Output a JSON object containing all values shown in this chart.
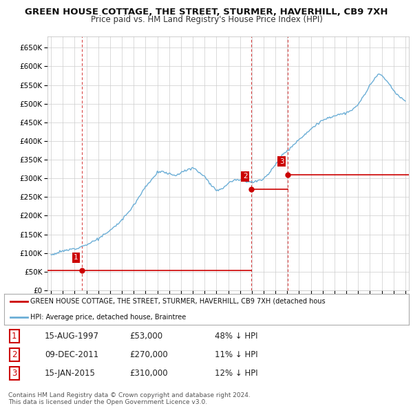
{
  "title": "GREEN HOUSE COTTAGE, THE STREET, STURMER, HAVERHILL, CB9 7XH",
  "subtitle": "Price paid vs. HM Land Registry's House Price Index (HPI)",
  "title_fontsize": 9.5,
  "subtitle_fontsize": 8.5,
  "ylim": [
    0,
    680000
  ],
  "yticks": [
    0,
    50000,
    100000,
    150000,
    200000,
    250000,
    300000,
    350000,
    400000,
    450000,
    500000,
    550000,
    600000,
    650000
  ],
  "ytick_labels": [
    "£0",
    "£50K",
    "£100K",
    "£150K",
    "£200K",
    "£250K",
    "£300K",
    "£350K",
    "£400K",
    "£450K",
    "£500K",
    "£550K",
    "£600K",
    "£650K"
  ],
  "xlim_start": 1994.7,
  "xlim_end": 2025.3,
  "sale_dates": [
    1997.618,
    2011.94,
    2015.04
  ],
  "sale_prices": [
    53000,
    270000,
    310000
  ],
  "sale_labels": [
    "1",
    "2",
    "3"
  ],
  "hpi_color": "#6baed6",
  "sale_color": "#cc0000",
  "legend_sale_label": "GREEN HOUSE COTTAGE, THE STREET, STURMER, HAVERHILL, CB9 7XH (detached hous",
  "legend_hpi_label": "HPI: Average price, detached house, Braintree",
  "table_rows": [
    [
      "1",
      "15-AUG-1997",
      "£53,000",
      "48% ↓ HPI"
    ],
    [
      "2",
      "09-DEC-2011",
      "£270,000",
      "11% ↓ HPI"
    ],
    [
      "3",
      "15-JAN-2015",
      "£310,000",
      "12% ↓ HPI"
    ]
  ],
  "footnote": "Contains HM Land Registry data © Crown copyright and database right 2024.\nThis data is licensed under the Open Government Licence v3.0.",
  "background_color": "#ffffff",
  "grid_color": "#cccccc",
  "hpi_data_years": [
    1995.0,
    1995.083,
    1995.167,
    1995.25,
    1995.333,
    1995.417,
    1995.5,
    1995.583,
    1995.667,
    1995.75,
    1995.833,
    1995.917,
    1996.0,
    1996.083,
    1996.167,
    1996.25,
    1996.333,
    1996.417,
    1996.5,
    1996.583,
    1996.667,
    1996.75,
    1996.833,
    1996.917,
    1997.0,
    1997.083,
    1997.167,
    1997.25,
    1997.333,
    1997.417,
    1997.5,
    1997.583,
    1997.667,
    1997.75,
    1997.833,
    1997.917,
    1998.0,
    1998.083,
    1998.167,
    1998.25,
    1998.333,
    1998.417,
    1998.5,
    1998.583,
    1998.667,
    1998.75,
    1998.833,
    1998.917,
    1999.0,
    1999.083,
    1999.167,
    1999.25,
    1999.333,
    1999.417,
    1999.5,
    1999.583,
    1999.667,
    1999.75,
    1999.833,
    1999.917,
    2000.0,
    2000.083,
    2000.167,
    2000.25,
    2000.333,
    2000.417,
    2000.5,
    2000.583,
    2000.667,
    2000.75,
    2000.833,
    2000.917,
    2001.0,
    2001.083,
    2001.167,
    2001.25,
    2001.333,
    2001.417,
    2001.5,
    2001.583,
    2001.667,
    2001.75,
    2001.833,
    2001.917,
    2002.0,
    2002.083,
    2002.167,
    2002.25,
    2002.333,
    2002.417,
    2002.5,
    2002.583,
    2002.667,
    2002.75,
    2002.833,
    2002.917,
    2003.0,
    2003.083,
    2003.167,
    2003.25,
    2003.333,
    2003.417,
    2003.5,
    2003.583,
    2003.667,
    2003.75,
    2003.833,
    2003.917,
    2004.0,
    2004.083,
    2004.167,
    2004.25,
    2004.333,
    2004.417,
    2004.5,
    2004.583,
    2004.667,
    2004.75,
    2004.833,
    2004.917,
    2005.0,
    2005.083,
    2005.167,
    2005.25,
    2005.333,
    2005.417,
    2005.5,
    2005.583,
    2005.667,
    2005.75,
    2005.833,
    2005.917,
    2006.0,
    2006.083,
    2006.167,
    2006.25,
    2006.333,
    2006.417,
    2006.5,
    2006.583,
    2006.667,
    2006.75,
    2006.833,
    2006.917,
    2007.0,
    2007.083,
    2007.167,
    2007.25,
    2007.333,
    2007.417,
    2007.5,
    2007.583,
    2007.667,
    2007.75,
    2007.833,
    2007.917,
    2008.0,
    2008.083,
    2008.167,
    2008.25,
    2008.333,
    2008.417,
    2008.5,
    2008.583,
    2008.667,
    2008.75,
    2008.833,
    2008.917,
    2009.0,
    2009.083,
    2009.167,
    2009.25,
    2009.333,
    2009.417,
    2009.5,
    2009.583,
    2009.667,
    2009.75,
    2009.833,
    2009.917,
    2010.0,
    2010.083,
    2010.167,
    2010.25,
    2010.333,
    2010.417,
    2010.5,
    2010.583,
    2010.667,
    2010.75,
    2010.833,
    2010.917,
    2011.0,
    2011.083,
    2011.167,
    2011.25,
    2011.333,
    2011.417,
    2011.5,
    2011.583,
    2011.667,
    2011.75,
    2011.833,
    2011.917,
    2012.0,
    2012.083,
    2012.167,
    2012.25,
    2012.333,
    2012.417,
    2012.5,
    2012.583,
    2012.667,
    2012.75,
    2012.833,
    2012.917,
    2013.0,
    2013.083,
    2013.167,
    2013.25,
    2013.333,
    2013.417,
    2013.5,
    2013.583,
    2013.667,
    2013.75,
    2013.833,
    2013.917,
    2014.0,
    2014.083,
    2014.167,
    2014.25,
    2014.333,
    2014.417,
    2014.5,
    2014.583,
    2014.667,
    2014.75,
    2014.833,
    2014.917,
    2015.0,
    2015.083,
    2015.167,
    2015.25,
    2015.333,
    2015.417,
    2015.5,
    2015.583,
    2015.667,
    2015.75,
    2015.833,
    2015.917,
    2016.0,
    2016.083,
    2016.167,
    2016.25,
    2016.333,
    2016.417,
    2016.5,
    2016.583,
    2016.667,
    2016.75,
    2016.833,
    2016.917,
    2017.0,
    2017.083,
    2017.167,
    2017.25,
    2017.333,
    2017.417,
    2017.5,
    2017.583,
    2017.667,
    2017.75,
    2017.833,
    2017.917,
    2018.0,
    2018.083,
    2018.167,
    2018.25,
    2018.333,
    2018.417,
    2018.5,
    2018.583,
    2018.667,
    2018.75,
    2018.833,
    2018.917,
    2019.0,
    2019.083,
    2019.167,
    2019.25,
    2019.333,
    2019.417,
    2019.5,
    2019.583,
    2019.667,
    2019.75,
    2019.833,
    2019.917,
    2020.0,
    2020.083,
    2020.167,
    2020.25,
    2020.333,
    2020.417,
    2020.5,
    2020.583,
    2020.667,
    2020.75,
    2020.833,
    2020.917,
    2021.0,
    2021.083,
    2021.167,
    2021.25,
    2021.333,
    2021.417,
    2021.5,
    2021.583,
    2021.667,
    2021.75,
    2021.833,
    2021.917,
    2022.0,
    2022.083,
    2022.167,
    2022.25,
    2022.333,
    2022.417,
    2022.5,
    2022.583,
    2022.667,
    2022.75,
    2022.833,
    2022.917,
    2023.0,
    2023.083,
    2023.167,
    2023.25,
    2023.333,
    2023.417,
    2023.5,
    2023.583,
    2023.667,
    2023.75,
    2023.833,
    2023.917,
    2024.0,
    2024.083,
    2024.167,
    2024.25,
    2024.333,
    2024.417,
    2024.5,
    2024.583,
    2024.667,
    2024.75,
    2024.833,
    2024.917,
    2025.0
  ]
}
